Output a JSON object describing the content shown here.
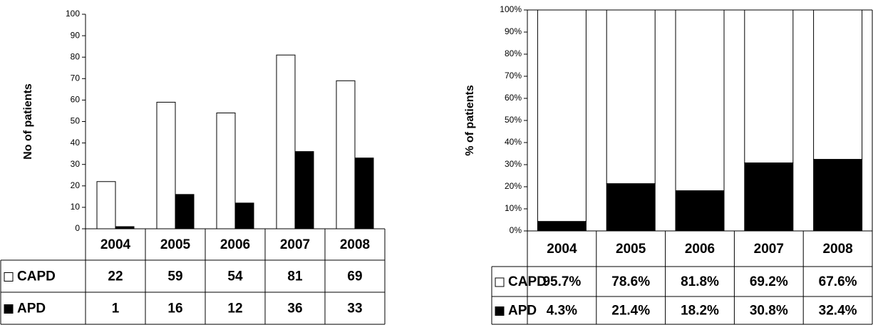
{
  "chart_data": [
    {
      "type": "bar",
      "y_label": "No of patients",
      "categories": [
        "2004",
        "2005",
        "2006",
        "2007",
        "2008"
      ],
      "series": [
        {
          "name": "CAPD",
          "color": "#ffffff",
          "values": [
            22,
            59,
            54,
            81,
            69
          ]
        },
        {
          "name": "APD",
          "color": "#000000",
          "values": [
            1,
            16,
            12,
            36,
            33
          ]
        }
      ],
      "ylim": [
        0,
        100
      ],
      "yticks": [
        0,
        10,
        20,
        30,
        40,
        50,
        60,
        70,
        80,
        90,
        100
      ]
    },
    {
      "type": "stacked_bar",
      "y_label": "% of patients",
      "categories": [
        "2004",
        "2005",
        "2006",
        "2007",
        "2008"
      ],
      "series": [
        {
          "name": "CAPD",
          "color": "#ffffff",
          "values": [
            95.7,
            78.6,
            81.8,
            69.2,
            67.6
          ],
          "value_labels": [
            "95.7%",
            "78.6%",
            "81.8%",
            "69.2%",
            "67.6%"
          ]
        },
        {
          "name": "APD",
          "color": "#000000",
          "values": [
            4.3,
            21.4,
            18.2,
            30.8,
            32.4
          ],
          "value_labels": [
            "4.3%",
            "21.4%",
            "18.2%",
            "30.8%",
            "32.4%"
          ]
        }
      ],
      "ylim": [
        0,
        100
      ],
      "yticks": [
        {
          "value": 0,
          "label": "0%"
        },
        {
          "value": 10,
          "label": "10%"
        },
        {
          "value": 20,
          "label": "20%"
        },
        {
          "value": 30,
          "label": "30%"
        },
        {
          "value": 40,
          "label": "40%"
        },
        {
          "value": 50,
          "label": "50%"
        },
        {
          "value": 60,
          "label": "60%"
        },
        {
          "value": 70,
          "label": "70%"
        },
        {
          "value": 80,
          "label": "80%"
        },
        {
          "value": 90,
          "label": "90%"
        },
        {
          "value": 100,
          "label": "100%"
        }
      ]
    }
  ]
}
